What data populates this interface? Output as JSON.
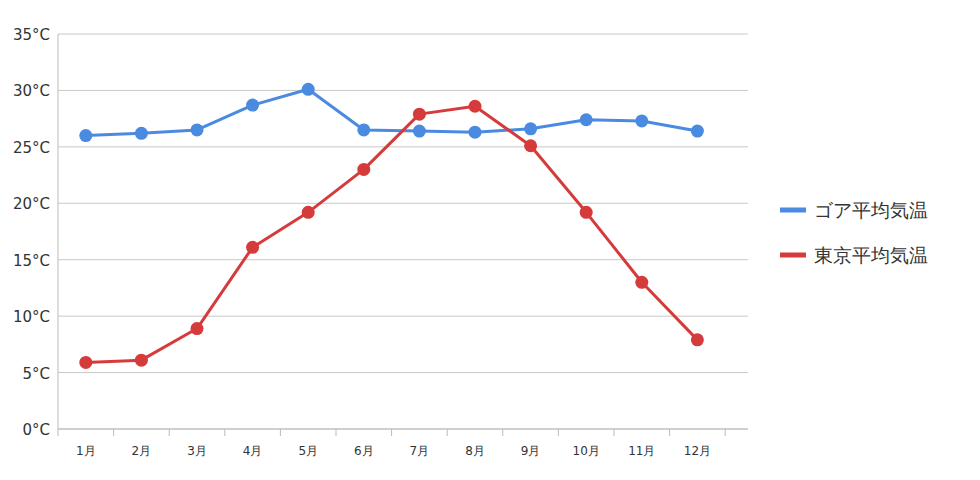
{
  "chart_data": {
    "type": "line",
    "categories": [
      "1月",
      "2月",
      "3月",
      "4月",
      "5月",
      "6月",
      "7月",
      "8月",
      "9月",
      "10月",
      "11月",
      "12月"
    ],
    "series": [
      {
        "name": "ゴア平均気温",
        "color": "#4a8ae0",
        "marker": "circle",
        "values": [
          26.0,
          26.2,
          26.5,
          28.7,
          30.1,
          26.5,
          26.4,
          26.3,
          26.6,
          27.4,
          27.3,
          26.4
        ]
      },
      {
        "name": "東京平均気温",
        "color": "#d63b3b",
        "marker": "circle",
        "values": [
          5.9,
          6.1,
          8.9,
          16.1,
          19.2,
          23.0,
          27.9,
          28.6,
          25.1,
          19.2,
          13.0,
          7.9
        ]
      }
    ],
    "ylim": [
      0,
      35
    ],
    "yticks": [
      {
        "value": 0,
        "label": "0°C"
      },
      {
        "value": 5,
        "label": "5°C"
      },
      {
        "value": 10,
        "label": "10°C"
      },
      {
        "value": 15,
        "label": "15°C"
      },
      {
        "value": 20,
        "label": "20°C"
      },
      {
        "value": 25,
        "label": "25°C"
      },
      {
        "value": 30,
        "label": "30°C"
      },
      {
        "value": 35,
        "label": "35°C"
      }
    ],
    "grid": true,
    "legend": "right"
  }
}
